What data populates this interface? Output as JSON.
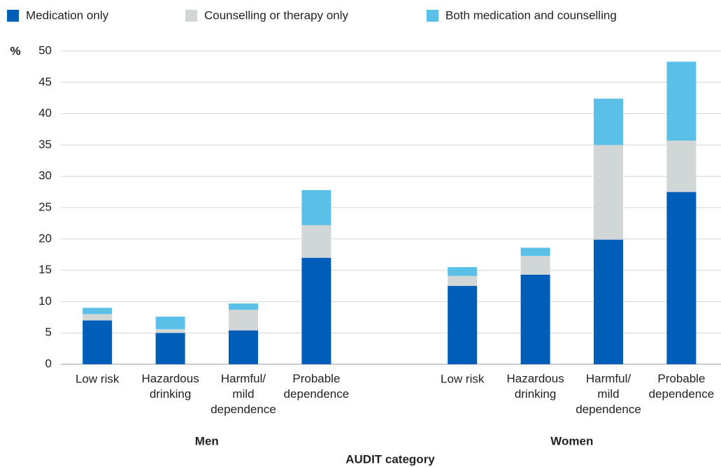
{
  "chart_data": {
    "type": "stacked_bar",
    "x_label": "AUDIT category",
    "y_label": "%",
    "groups": [
      "Men",
      "Women"
    ],
    "categories": [
      "Low risk",
      "Hazardous\ndrinking",
      "Harmful/\nmild\ndependence",
      "Probable\ndependence",
      "Low risk",
      "Hazardous\ndrinking",
      "Harmful/\nmild\ndependence",
      "Probable\ndependence"
    ],
    "category_group": [
      0,
      0,
      0,
      0,
      1,
      1,
      1,
      1
    ],
    "series": [
      {
        "name": "Medication only",
        "color": "#005eb8",
        "values": [
          7.0,
          5.0,
          5.4,
          17.0,
          12.5,
          14.3,
          19.9,
          27.5
        ]
      },
      {
        "name": "Counselling or therapy only",
        "color": "#d1d6d6",
        "values": [
          1.0,
          0.6,
          3.3,
          5.2,
          1.6,
          3.0,
          15.1,
          8.2
        ]
      },
      {
        "name": "Both medication and counselling",
        "color": "#5bc0e8",
        "values": [
          1.0,
          2.0,
          1.0,
          5.6,
          1.4,
          1.3,
          7.4,
          12.6
        ]
      }
    ],
    "ylim": [
      0,
      50
    ],
    "yticks": [
      0,
      5,
      10,
      15,
      20,
      25,
      30,
      35,
      40,
      45,
      50
    ],
    "grid": true,
    "legend": "top"
  }
}
